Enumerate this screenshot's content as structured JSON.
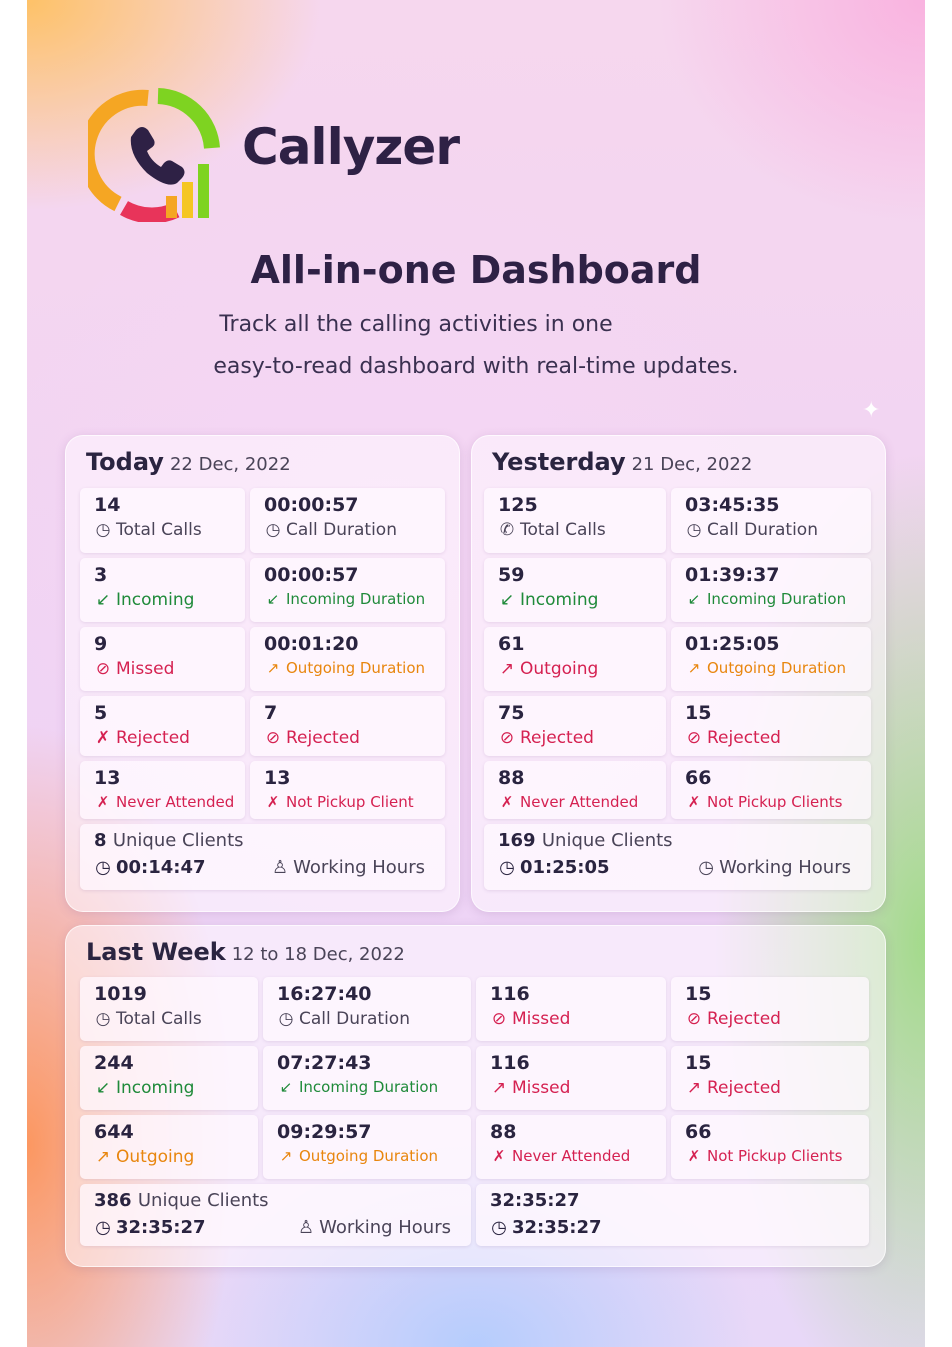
{
  "brand": {
    "name": "Callyzer",
    "logo_colors": [
      "#f5a623",
      "#7ed321",
      "#e8345a",
      "#2e2145"
    ]
  },
  "headline": "All-in-one Dashboard",
  "subtitle_lines": [
    "Track all the calling activities in one",
    "easy-to-read dashboard with real-time updates."
  ],
  "colors": {
    "green": "#1f8a3a",
    "red": "#d52151",
    "orange": "#e8860e",
    "dark": "#2a2440",
    "gray": "#4a4458"
  },
  "panels": [
    {
      "title": "Today",
      "date": "22 Dec, 2022",
      "columns": 2,
      "cells": [
        {
          "value": "14",
          "label": "Total Calls",
          "icon": "clock-icon",
          "color": "gray"
        },
        {
          "value": "00:00:57",
          "label": "Call Duration",
          "icon": "clock-icon",
          "color": "gray"
        },
        {
          "value": "3",
          "label": "Incoming",
          "icon": "incoming-icon",
          "color": "green"
        },
        {
          "value": "00:00:57",
          "label": "Incoming Duration",
          "icon": "incoming-icon",
          "color": "green",
          "small": true
        },
        {
          "value": "9",
          "label": "Missed",
          "icon": "missed-icon",
          "color": "red"
        },
        {
          "value": "00:01:20",
          "label": "Outgoing Duration",
          "icon": "outgoing-icon",
          "color": "orange",
          "small": true
        },
        {
          "value": "5",
          "label": "Rejected",
          "icon": "rejected-icon",
          "color": "red"
        },
        {
          "value": "7",
          "label": "Rejected",
          "icon": "missed-icon",
          "color": "red"
        },
        {
          "value": "13",
          "label": "Never Attended",
          "icon": "rejected-icon",
          "color": "red",
          "small": true
        },
        {
          "value": "13",
          "label": "Not Pickup Client",
          "icon": "rejected-icon",
          "color": "red",
          "small": true
        }
      ],
      "summary": [
        {
          "count": "8",
          "count_label": "Unique Clients",
          "hours": "00:14:47",
          "hours_label": "Working Hours",
          "hours_icon": "person-icon"
        }
      ]
    },
    {
      "title": "Yesterday",
      "date": "21 Dec, 2022",
      "columns": 2,
      "cells": [
        {
          "value": "125",
          "label": "Total Calls",
          "icon": "phone-icon",
          "color": "gray"
        },
        {
          "value": "03:45:35",
          "label": "Call Duration",
          "icon": "clock-icon",
          "color": "gray"
        },
        {
          "value": "59",
          "label": "Incoming",
          "icon": "incoming-icon",
          "color": "green"
        },
        {
          "value": "01:39:37",
          "label": "Incoming Duration",
          "icon": "incoming-icon",
          "color": "green",
          "small": true
        },
        {
          "value": "61",
          "label": "Outgoing",
          "icon": "outgoing-icon",
          "color": "red"
        },
        {
          "value": "01:25:05",
          "label": "Outgoing Duration",
          "icon": "outgoing-icon",
          "color": "orange",
          "small": true
        },
        {
          "value": "75",
          "label": "Rejected",
          "icon": "missed-icon",
          "color": "red"
        },
        {
          "value": "15",
          "label": "Rejected",
          "icon": "missed-icon",
          "color": "red"
        },
        {
          "value": "88",
          "label": "Never Attended",
          "icon": "rejected-icon",
          "color": "red",
          "small": true
        },
        {
          "value": "66",
          "label": "Not Pickup Clients",
          "icon": "rejected-icon",
          "color": "red",
          "small": true
        }
      ],
      "summary": [
        {
          "count": "169",
          "count_label": "Unique Clients",
          "hours": "01:25:05",
          "hours_label": "Working Hours",
          "hours_icon": "clock-icon"
        }
      ]
    },
    {
      "title": "Last Week",
      "date": "12 to 18 Dec, 2022",
      "columns": 4,
      "cells": [
        {
          "value": "1019",
          "label": "Total Calls",
          "icon": "clock-icon",
          "color": "gray"
        },
        {
          "value": "16:27:40",
          "label": "Call Duration",
          "icon": "clock-icon",
          "color": "gray"
        },
        {
          "value": "116",
          "label": "Missed",
          "icon": "missed-icon",
          "color": "red"
        },
        {
          "value": "15",
          "label": "Rejected",
          "icon": "missed-icon",
          "color": "red"
        },
        {
          "value": "244",
          "label": "Incoming",
          "icon": "incoming-icon",
          "color": "green"
        },
        {
          "value": "07:27:43",
          "label": "Incoming Duration",
          "icon": "incoming-icon",
          "color": "green",
          "small": true
        },
        {
          "value": "116",
          "label": "Missed",
          "icon": "outgoing-icon",
          "color": "red"
        },
        {
          "value": "15",
          "label": "Rejected",
          "icon": "outgoing-icon",
          "color": "red"
        },
        {
          "value": "644",
          "label": "Outgoing",
          "icon": "outgoing-icon",
          "color": "orange"
        },
        {
          "value": "09:29:57",
          "label": "Outgoing Duration",
          "icon": "outgoing-icon",
          "color": "orange",
          "small": true
        },
        {
          "value": "88",
          "label": "Never Attended",
          "icon": "rejected-icon",
          "color": "red",
          "small": true
        },
        {
          "value": "66",
          "label": "Not Pickup Clients",
          "icon": "rejected-icon",
          "color": "red",
          "small": true
        }
      ],
      "summary": [
        {
          "count": "386",
          "count_label": "Unique Clients",
          "hours": "32:35:27",
          "hours_label": "Working Hours",
          "hours_icon": "person-icon"
        },
        {
          "count": "32:35:27",
          "count_label": "",
          "hours": "32:35:27",
          "hours_label": "",
          "hours_icon": ""
        }
      ]
    }
  ]
}
